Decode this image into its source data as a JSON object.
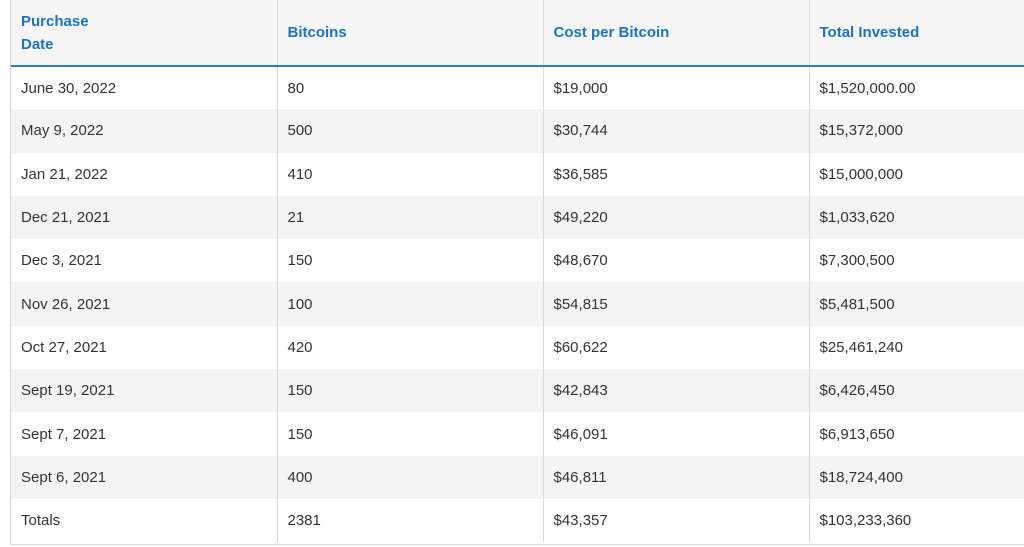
{
  "table": {
    "headers": {
      "date_line1": "Purchase",
      "date_line2": "Date",
      "bitcoins": "Bitcoins",
      "cost": "Cost per Bitcoin",
      "total": "Total Invested"
    },
    "rows": [
      {
        "date": "June 30, 2022",
        "bitcoins": "80",
        "cost": "$19,000",
        "total": "$1,520,000.00"
      },
      {
        "date": "May 9, 2022",
        "bitcoins": "500",
        "cost": "$30,744",
        "total": "$15,372,000"
      },
      {
        "date": "Jan 21, 2022",
        "bitcoins": "410",
        "cost": "$36,585",
        "total": "$15,000,000"
      },
      {
        "date": "Dec 21, 2021",
        "bitcoins": "21",
        "cost": "$49,220",
        "total": "$1,033,620"
      },
      {
        "date": "Dec 3, 2021",
        "bitcoins": "150",
        "cost": "$48,670",
        "total": "$7,300,500"
      },
      {
        "date": "Nov 26, 2021",
        "bitcoins": "100",
        "cost": "$54,815",
        "total": "$5,481,500"
      },
      {
        "date": "Oct 27, 2021",
        "bitcoins": "420",
        "cost": "$60,622",
        "total": "$25,461,240"
      },
      {
        "date": "Sept 19, 2021",
        "bitcoins": "150",
        "cost": "$42,843",
        "total": "$6,426,450"
      },
      {
        "date": "Sept 7, 2021",
        "bitcoins": "150",
        "cost": "$46,091",
        "total": "$6,913,650"
      },
      {
        "date": "Sept 6, 2021",
        "bitcoins": "400",
        "cost": "$46,811",
        "total": "$18,724,400"
      },
      {
        "date": "Totals",
        "bitcoins": "2381",
        "cost": "$43,357",
        "total": "$103,233,360"
      }
    ]
  },
  "colors": {
    "header_text": "#1a73c4",
    "header_rule": "#2f7ec9",
    "row_alt": "#f4f4f4",
    "body_text": "#333333"
  }
}
